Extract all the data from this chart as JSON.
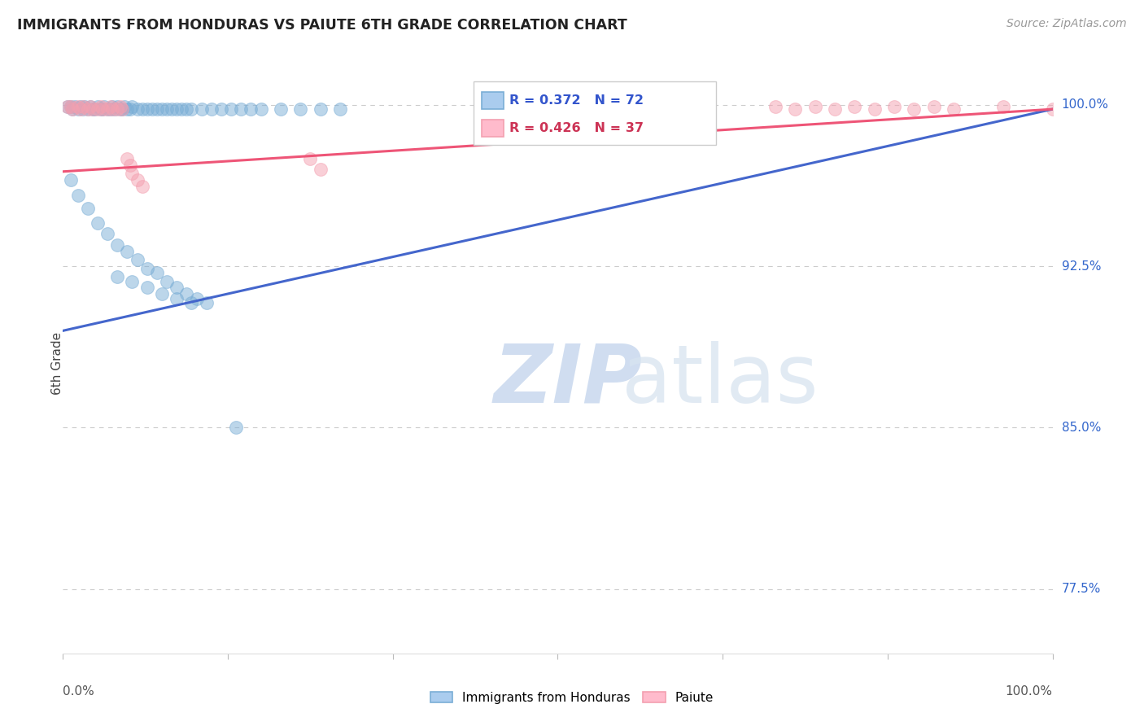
{
  "title": "IMMIGRANTS FROM HONDURAS VS PAIUTE 6TH GRADE CORRELATION CHART",
  "source": "Source: ZipAtlas.com",
  "ylabel": "6th Grade",
  "xlim": [
    0.0,
    1.0
  ],
  "ylim": [
    0.745,
    1.015
  ],
  "yticks": [
    1.0,
    0.925,
    0.85,
    0.775
  ],
  "ytick_labels": [
    "100.0%",
    "92.5%",
    "85.0%",
    "77.5%"
  ],
  "legend_label_blue": "Immigrants from Honduras",
  "legend_label_pink": "Paiute",
  "R_blue": 0.372,
  "N_blue": 72,
  "R_pink": 0.426,
  "N_pink": 37,
  "blue_color": "#7aaed6",
  "pink_color": "#f4a0b0",
  "blue_edge": "#7aaed6",
  "pink_edge": "#f4a0b0",
  "trend_blue": "#4466cc",
  "trend_pink": "#ee5577",
  "blue_trend_x": [
    0.0,
    1.0
  ],
  "blue_trend_y": [
    0.895,
    0.998
  ],
  "pink_trend_x": [
    0.0,
    1.0
  ],
  "pink_trend_y": [
    0.969,
    0.998
  ],
  "blue_x": [
    0.005,
    0.008,
    0.01,
    0.012,
    0.015,
    0.018,
    0.02,
    0.022,
    0.025,
    0.028,
    0.03,
    0.032,
    0.035,
    0.038,
    0.04,
    0.042,
    0.045,
    0.048,
    0.05,
    0.052,
    0.055,
    0.058,
    0.06,
    0.062,
    0.065,
    0.068,
    0.07,
    0.075,
    0.08,
    0.085,
    0.09,
    0.095,
    0.1,
    0.105,
    0.11,
    0.115,
    0.12,
    0.125,
    0.13,
    0.14,
    0.15,
    0.16,
    0.17,
    0.18,
    0.19,
    0.2,
    0.22,
    0.24,
    0.26,
    0.28,
    0.008,
    0.015,
    0.025,
    0.035,
    0.045,
    0.055,
    0.065,
    0.075,
    0.085,
    0.095,
    0.105,
    0.115,
    0.125,
    0.135,
    0.145,
    0.055,
    0.07,
    0.085,
    0.1,
    0.115,
    0.13,
    0.175
  ],
  "blue_y": [
    0.999,
    0.999,
    0.998,
    0.999,
    0.998,
    0.999,
    0.998,
    0.999,
    0.998,
    0.999,
    0.998,
    0.998,
    0.999,
    0.998,
    0.998,
    0.999,
    0.998,
    0.998,
    0.999,
    0.998,
    0.999,
    0.998,
    0.998,
    0.999,
    0.998,
    0.998,
    0.999,
    0.998,
    0.998,
    0.998,
    0.998,
    0.998,
    0.998,
    0.998,
    0.998,
    0.998,
    0.998,
    0.998,
    0.998,
    0.998,
    0.998,
    0.998,
    0.998,
    0.998,
    0.998,
    0.998,
    0.998,
    0.998,
    0.998,
    0.998,
    0.965,
    0.958,
    0.952,
    0.945,
    0.94,
    0.935,
    0.932,
    0.928,
    0.924,
    0.922,
    0.918,
    0.915,
    0.912,
    0.91,
    0.908,
    0.92,
    0.918,
    0.915,
    0.912,
    0.91,
    0.908,
    0.85
  ],
  "pink_x": [
    0.005,
    0.008,
    0.01,
    0.015,
    0.018,
    0.02,
    0.025,
    0.028,
    0.03,
    0.035,
    0.038,
    0.04,
    0.045,
    0.048,
    0.05,
    0.055,
    0.058,
    0.06,
    0.065,
    0.068,
    0.07,
    0.075,
    0.08,
    0.25,
    0.26,
    0.72,
    0.74,
    0.76,
    0.78,
    0.8,
    0.82,
    0.84,
    0.86,
    0.88,
    0.9,
    0.95,
    1.0
  ],
  "pink_y": [
    0.999,
    0.999,
    0.998,
    0.999,
    0.998,
    0.999,
    0.998,
    0.999,
    0.998,
    0.998,
    0.999,
    0.998,
    0.998,
    0.999,
    0.998,
    0.998,
    0.999,
    0.998,
    0.975,
    0.972,
    0.968,
    0.965,
    0.962,
    0.975,
    0.97,
    0.999,
    0.998,
    0.999,
    0.998,
    0.999,
    0.998,
    0.999,
    0.998,
    0.999,
    0.998,
    0.999,
    0.998
  ],
  "watermark_zip": "ZIP",
  "watermark_atlas": "atlas",
  "background_color": "#ffffff",
  "grid_color": "#cccccc",
  "marker_size": 130,
  "marker_alpha": 0.5
}
